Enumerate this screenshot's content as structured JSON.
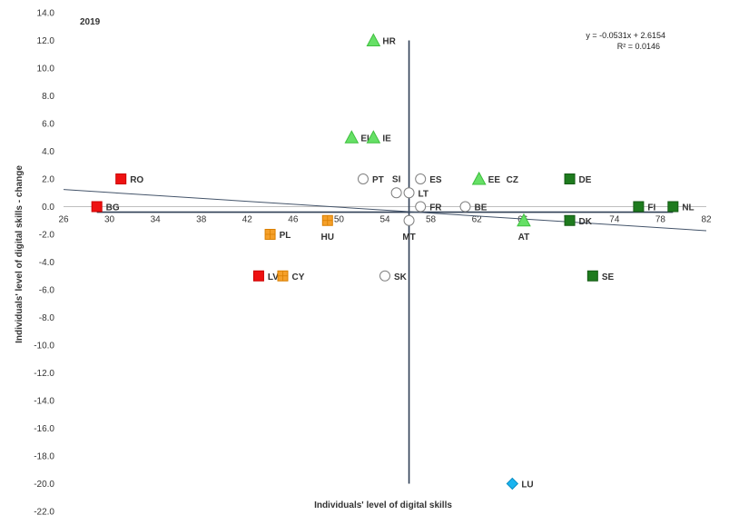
{
  "chart_data": {
    "type": "scatter",
    "title": "2019",
    "xlabel": "Individuals'  level of digital skills",
    "ylabel": "Individuals'  level of digital skills - change",
    "xlim": [
      26,
      82
    ],
    "ylim": [
      -22,
      14
    ],
    "x_ticks": [
      26,
      30,
      34,
      38,
      42,
      46,
      50,
      54,
      58,
      62,
      66,
      70,
      74,
      78,
      82
    ],
    "y_ticks": [
      "14.0",
      "12.0",
      "10.0",
      "8.0",
      "6.0",
      "4.0",
      "2.0",
      "0.0",
      "-2.0",
      "-4.0",
      "-6.0",
      "-8.0",
      "-10.0",
      "-12.0",
      "-14.0",
      "-16.0",
      "-18.0",
      "-20.0",
      "-22.0"
    ],
    "grid": false,
    "reference_lines": {
      "x": 56.1,
      "y": -0.4
    },
    "trendline": {
      "slope": -0.0531,
      "intercept": 2.6154,
      "equation": "y = -0.0531x + 2.6154",
      "r2": "R² = 0.0146",
      "color": "#44546a"
    },
    "marker_styles": {
      "red-square": {
        "shape": "square",
        "fill": "#ee1111",
        "stroke": "#cc0000"
      },
      "orange-grid-square": {
        "shape": "grid-square",
        "fill": "#f5a02a",
        "stroke": "#d97f00"
      },
      "green-triangle": {
        "shape": "triangle",
        "fill": "#66e066",
        "stroke": "#3fbf3f"
      },
      "darkgreen-square": {
        "shape": "square",
        "fill": "#1e7b1e",
        "stroke": "#145a14"
      },
      "white-circle": {
        "shape": "circle",
        "fill": "#ffffff",
        "stroke": "#808080"
      },
      "cyan-diamond": {
        "shape": "diamond",
        "fill": "#1ab4f0",
        "stroke": "#0b8fc4"
      }
    },
    "points": [
      {
        "label": "RO",
        "x": 31.0,
        "y": 2.0,
        "style": "red-square",
        "lpos": "right"
      },
      {
        "label": "BG",
        "x": 28.9,
        "y": 0.0,
        "style": "red-square",
        "lpos": "right"
      },
      {
        "label": "LV",
        "x": 43.0,
        "y": -5.0,
        "style": "red-square",
        "lpos": "right"
      },
      {
        "label": "CY",
        "x": 45.1,
        "y": -5.0,
        "style": "orange-grid-square",
        "lpos": "right"
      },
      {
        "label": "PL",
        "x": 44.0,
        "y": -2.0,
        "style": "orange-grid-square",
        "lpos": "right"
      },
      {
        "label": "HU",
        "x": 49.0,
        "y": -1.0,
        "style": "orange-grid-square",
        "lpos": "below"
      },
      {
        "label": "PT",
        "x": 52.1,
        "y": 2.0,
        "style": "white-circle",
        "lpos": "right"
      },
      {
        "label": "SI",
        "x": 55.0,
        "y": 1.0,
        "style": "white-circle",
        "lpos": "above"
      },
      {
        "label": "LT",
        "x": 56.1,
        "y": 1.0,
        "style": "white-circle",
        "lpos": "right"
      },
      {
        "label": "ES",
        "x": 57.1,
        "y": 2.0,
        "style": "white-circle",
        "lpos": "right"
      },
      {
        "label": "FR",
        "x": 57.1,
        "y": 0.0,
        "style": "white-circle",
        "lpos": "right"
      },
      {
        "label": "MT",
        "x": 56.1,
        "y": -1.0,
        "style": "white-circle",
        "lpos": "below"
      },
      {
        "label": "BE",
        "x": 61.0,
        "y": 0.0,
        "style": "white-circle",
        "lpos": "right"
      },
      {
        "label": "SK",
        "x": 54.0,
        "y": -5.0,
        "style": "white-circle",
        "lpos": "right"
      },
      {
        "label": "HR",
        "x": 53.0,
        "y": 12.0,
        "style": "green-triangle",
        "lpos": "right"
      },
      {
        "label": "EL",
        "x": 51.1,
        "y": 5.0,
        "style": "green-triangle",
        "lpos": "right"
      },
      {
        "label": "IE",
        "x": 53.0,
        "y": 5.0,
        "style": "green-triangle",
        "lpos": "right"
      },
      {
        "label": "EE",
        "x": 62.2,
        "y": 2.0,
        "style": "green-triangle",
        "lpos": "right"
      },
      {
        "label": "CZ",
        "x": 62.2,
        "y": 2.0,
        "style": "green-triangle",
        "lpos": "right"
      },
      {
        "label": "AT",
        "x": 66.1,
        "y": -1.0,
        "style": "green-triangle",
        "lpos": "below"
      },
      {
        "label": "DE",
        "x": 70.1,
        "y": 2.0,
        "style": "darkgreen-square",
        "lpos": "right"
      },
      {
        "label": "DK",
        "x": 70.1,
        "y": -1.0,
        "style": "darkgreen-square",
        "lpos": "right"
      },
      {
        "label": "FI",
        "x": 76.1,
        "y": 0.0,
        "style": "darkgreen-square",
        "lpos": "right"
      },
      {
        "label": "NL",
        "x": 79.1,
        "y": 0.0,
        "style": "darkgreen-square",
        "lpos": "right"
      },
      {
        "label": "SE",
        "x": 72.1,
        "y": -5.0,
        "style": "darkgreen-square",
        "lpos": "right"
      },
      {
        "label": "LU",
        "x": 65.1,
        "y": -20.0,
        "style": "cyan-diamond",
        "lpos": "right"
      }
    ]
  }
}
